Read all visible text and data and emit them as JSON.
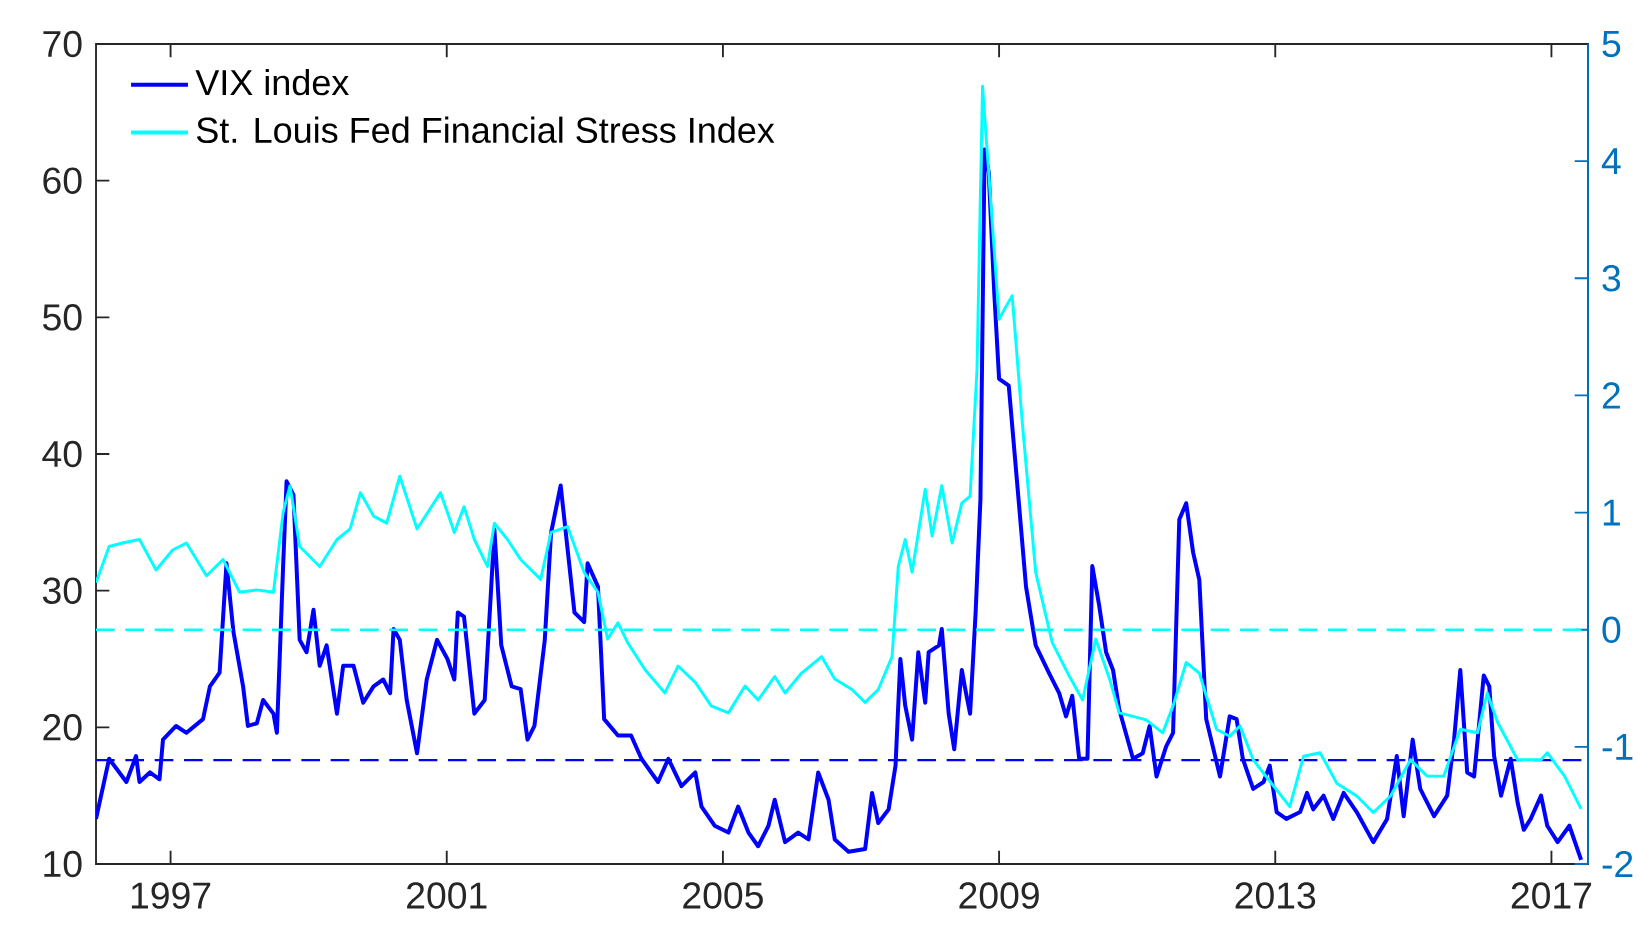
{
  "chart_data": {
    "type": "line",
    "legend": "top left",
    "xlim": [
      1995.92,
      2017.53
    ],
    "xticks": [
      1997,
      2001,
      2005,
      2009,
      2013,
      2017
    ],
    "ylim": [
      10,
      70
    ],
    "yticks": [
      10,
      20,
      30,
      40,
      50,
      60,
      70
    ],
    "y2lim": [
      -2,
      5
    ],
    "y2ticks": [
      -2,
      -1,
      0,
      1,
      2,
      3,
      4,
      5
    ],
    "ref_lines": [
      {
        "axis": "y",
        "value": 17.6,
        "color": "#0000ff",
        "line_style": "dashed"
      },
      {
        "axis": "y2",
        "value": 0,
        "color": "#00ffff",
        "line_style": "dashed"
      }
    ],
    "series": [
      {
        "name": "VIX index",
        "color": "#0000ff",
        "axis": "y",
        "x": [
          1995.92,
          1996.11,
          1996.36,
          1996.5,
          1996.55,
          1996.7,
          1996.84,
          1996.89,
          1997.08,
          1997.23,
          1997.47,
          1997.57,
          1997.71,
          1997.81,
          1997.91,
          1998.05,
          1998.12,
          1998.25,
          1998.34,
          1998.49,
          1998.54,
          1998.63,
          1998.68,
          1998.78,
          1998.87,
          1998.97,
          1999.07,
          1999.16,
          1999.26,
          1999.41,
          1999.5,
          1999.65,
          1999.79,
          1999.94,
          2000.08,
          2000.18,
          2000.23,
          2000.32,
          2000.42,
          2000.57,
          2000.71,
          2000.86,
          2001.01,
          2001.11,
          2001.16,
          2001.25,
          2001.4,
          2001.55,
          2001.64,
          2001.69,
          2001.79,
          2001.94,
          2002.07,
          2002.17,
          2002.27,
          2002.42,
          2002.51,
          2002.65,
          2002.85,
          2002.99,
          2003.04,
          2003.19,
          2003.28,
          2003.48,
          2003.67,
          2003.82,
          2004.06,
          2004.21,
          2004.4,
          2004.6,
          2004.69,
          2004.88,
          2005.08,
          2005.22,
          2005.37,
          2005.51,
          2005.66,
          2005.75,
          2005.9,
          2006.09,
          2006.24,
          2006.38,
          2006.53,
          2006.62,
          2006.82,
          2007.06,
          2007.16,
          2007.25,
          2007.4,
          2007.5,
          2007.57,
          2007.64,
          2007.74,
          2007.83,
          2007.93,
          2007.98,
          2008.13,
          2008.17,
          2008.27,
          2008.35,
          2008.46,
          2008.51,
          2008.58,
          2008.66,
          2008.73,
          2008.79,
          2008.85,
          2008.93,
          2009.0,
          2009.14,
          2009.29,
          2009.39,
          2009.53,
          2009.72,
          2009.87,
          2009.97,
          2010.06,
          2010.16,
          2010.28,
          2010.35,
          2010.45,
          2010.55,
          2010.65,
          2010.74,
          2010.94,
          2011.08,
          2011.18,
          2011.28,
          2011.42,
          2011.52,
          2011.61,
          2011.71,
          2011.81,
          2011.9,
          2012.0,
          2012.2,
          2012.34,
          2012.44,
          2012.53,
          2012.68,
          2012.83,
          2012.92,
          2013.02,
          2013.16,
          2013.36,
          2013.46,
          2013.55,
          2013.7,
          2013.84,
          2013.99,
          2014.18,
          2014.42,
          2014.62,
          2014.76,
          2014.86,
          2014.99,
          2015.1,
          2015.3,
          2015.49,
          2015.59,
          2015.68,
          2015.78,
          2015.88,
          2016.02,
          2016.1,
          2016.17,
          2016.27,
          2016.41,
          2016.51,
          2016.6,
          2016.7,
          2016.85,
          2016.94,
          2017.09,
          2017.26,
          2017.43
        ],
        "values": [
          13.3,
          17.7,
          16.0,
          17.9,
          16,
          16.7,
          16.2,
          19.1,
          20.1,
          19.6,
          20.6,
          23,
          24,
          32,
          27,
          23,
          20.1,
          20.3,
          22,
          21,
          19.6,
          31.8,
          38,
          37,
          26.4,
          25.5,
          28.6,
          24.5,
          26,
          21,
          24.5,
          24.5,
          21.8,
          23,
          23.5,
          22.5,
          27.2,
          26.4,
          22,
          18.1,
          23.5,
          26.4,
          25,
          23.5,
          28.4,
          28.1,
          21,
          22,
          29.9,
          34.5,
          26,
          23,
          22.8,
          19.1,
          20.1,
          26.4,
          34.2,
          37.7,
          28.4,
          27.7,
          32,
          30.3,
          20.6,
          19.4,
          19.4,
          17.7,
          16,
          17.7,
          15.7,
          16.7,
          14.2,
          12.8,
          12.3,
          14.2,
          12.3,
          11.3,
          12.8,
          14.7,
          11.6,
          12.3,
          11.8,
          16.7,
          14.7,
          11.8,
          10.9,
          11.1,
          15.2,
          13,
          14,
          17.2,
          25,
          21.6,
          19.1,
          25.5,
          21.8,
          25.5,
          26,
          27.2,
          21,
          18.4,
          24.2,
          22.8,
          21,
          28.4,
          36.7,
          62.3,
          60.6,
          51.8,
          45.5,
          45,
          36.2,
          30.3,
          26,
          24,
          22.5,
          20.8,
          22.3,
          17.7,
          17.7,
          31.8,
          28.9,
          25.5,
          24.2,
          21.3,
          17.7,
          18.1,
          20.1,
          16.4,
          18.6,
          19.6,
          35.2,
          36.4,
          32.8,
          30.8,
          20.6,
          16.4,
          20.8,
          20.6,
          17.7,
          15.5,
          16,
          17.2,
          13.8,
          13.3,
          13.8,
          15.2,
          14,
          15,
          13.3,
          15.2,
          13.8,
          11.6,
          13.3,
          17.9,
          13.5,
          19.1,
          15.5,
          13.5,
          15,
          19.1,
          24.2,
          16.7,
          16.4,
          23.8,
          23,
          17.9,
          15,
          17.7,
          14.5,
          12.5,
          13.3,
          15,
          12.8,
          11.6,
          12.8,
          10.3
        ]
      },
      {
        "name": "St. Louis Fed Financial Stress Index",
        "color": "#00ffff",
        "axis": "y2",
        "x": [
          1995.92,
          1996.11,
          1996.3,
          1996.55,
          1996.79,
          1997.03,
          1997.23,
          1997.52,
          1997.76,
          1998.0,
          1998.25,
          1998.49,
          1998.63,
          1998.73,
          1998.87,
          1999.16,
          1999.41,
          1999.6,
          1999.75,
          1999.94,
          2000.13,
          2000.32,
          2000.57,
          2000.91,
          2001.11,
          2001.25,
          2001.4,
          2001.59,
          2001.69,
          2001.88,
          2002.07,
          2002.36,
          2002.51,
          2002.75,
          2002.99,
          2003.19,
          2003.33,
          2003.48,
          2003.62,
          2003.87,
          2004.16,
          2004.35,
          2004.6,
          2004.83,
          2005.08,
          2005.32,
          2005.51,
          2005.75,
          2005.9,
          2006.14,
          2006.43,
          2006.62,
          2006.87,
          2007.06,
          2007.25,
          2007.45,
          2007.54,
          2007.64,
          2007.74,
          2007.93,
          2008.03,
          2008.17,
          2008.32,
          2008.46,
          2008.58,
          2008.68,
          2008.76,
          2008.85,
          2009.0,
          2009.1,
          2009.19,
          2009.34,
          2009.53,
          2009.77,
          2010.02,
          2010.21,
          2010.4,
          2010.6,
          2010.74,
          2010.94,
          2011.13,
          2011.37,
          2011.52,
          2011.71,
          2011.9,
          2012.15,
          2012.34,
          2012.49,
          2012.68,
          2012.97,
          2013.21,
          2013.41,
          2013.65,
          2013.89,
          2014.18,
          2014.42,
          2014.67,
          2014.96,
          2015.2,
          2015.44,
          2015.68,
          2015.93,
          2016.07,
          2016.22,
          2016.51,
          2016.85,
          2016.94,
          2017.19,
          2017.43
        ],
        "values": [
          0.4,
          0.71,
          0.74,
          0.77,
          0.51,
          0.68,
          0.74,
          0.46,
          0.6,
          0.32,
          0.34,
          0.32,
          1.0,
          1.23,
          0.71,
          0.54,
          0.77,
          0.86,
          1.17,
          0.97,
          0.91,
          1.31,
          0.86,
          1.17,
          0.83,
          1.05,
          0.77,
          0.54,
          0.91,
          0.77,
          0.6,
          0.43,
          0.83,
          0.88,
          0.49,
          0.32,
          -0.08,
          0.06,
          -0.11,
          -0.34,
          -0.54,
          -0.31,
          -0.45,
          -0.65,
          -0.71,
          -0.48,
          -0.6,
          -0.4,
          -0.54,
          -0.37,
          -0.23,
          -0.42,
          -0.51,
          -0.62,
          -0.51,
          -0.23,
          0.54,
          0.77,
          0.49,
          1.2,
          0.8,
          1.23,
          0.74,
          1.08,
          1.14,
          2.22,
          4.64,
          3.9,
          2.65,
          2.76,
          2.85,
          1.74,
          0.49,
          -0.11,
          -0.4,
          -0.6,
          -0.08,
          -0.42,
          -0.71,
          -0.74,
          -0.77,
          -0.88,
          -0.65,
          -0.28,
          -0.37,
          -0.85,
          -0.91,
          -0.82,
          -1.11,
          -1.33,
          -1.51,
          -1.08,
          -1.05,
          -1.31,
          -1.42,
          -1.56,
          -1.42,
          -1.11,
          -1.25,
          -1.25,
          -0.85,
          -0.88,
          -0.54,
          -0.79,
          -1.11,
          -1.11,
          -1.05,
          -1.25,
          -1.53
        ]
      }
    ]
  }
}
